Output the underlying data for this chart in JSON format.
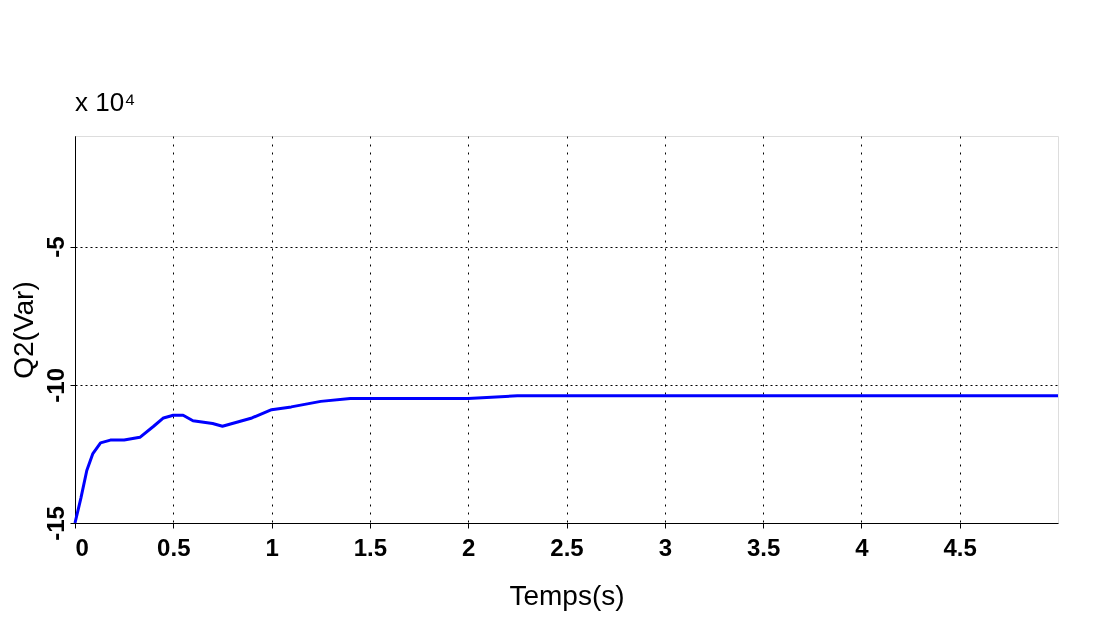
{
  "chart_data": {
    "type": "line",
    "xlabel": "Temps(s)",
    "ylabel": "Q2(Var)",
    "annotations": [
      "x 10⁴"
    ],
    "x": [
      0,
      0.03,
      0.06,
      0.09,
      0.13,
      0.18,
      0.25,
      0.33,
      0.4,
      0.45,
      0.5,
      0.55,
      0.6,
      0.7,
      0.75,
      0.8,
      0.9,
      1,
      1.1,
      1.25,
      1.4,
      1.5,
      1.75,
      2,
      2.25,
      2.5,
      3,
      3.5,
      4,
      4.5,
      5
    ],
    "series": [
      {
        "color": "#0000ff",
        "values": [
          -15,
          -14.1,
          -13.1,
          -12.5,
          -12.1,
          -12.0,
          -12.0,
          -11.9,
          -11.5,
          -11.2,
          -11.1,
          -11.1,
          -11.3,
          -11.4,
          -11.5,
          -11.4,
          -11.2,
          -10.9,
          -10.8,
          -10.6,
          -10.5,
          -10.5,
          -10.5,
          -10.5,
          -10.4,
          -10.4,
          -10.4,
          -10.4,
          -10.4,
          -10.4,
          -10.4
        ]
      }
    ],
    "xlim": [
      0,
      5
    ],
    "xticks": [
      0,
      0.5,
      1,
      1.5,
      2,
      2.5,
      3,
      3.5,
      4,
      4.5
    ],
    "ylim": [
      -15,
      -1
    ],
    "yticks": [
      -15,
      -10,
      -5
    ],
    "grid": true,
    "line_style": "solid",
    "marker": "none"
  }
}
